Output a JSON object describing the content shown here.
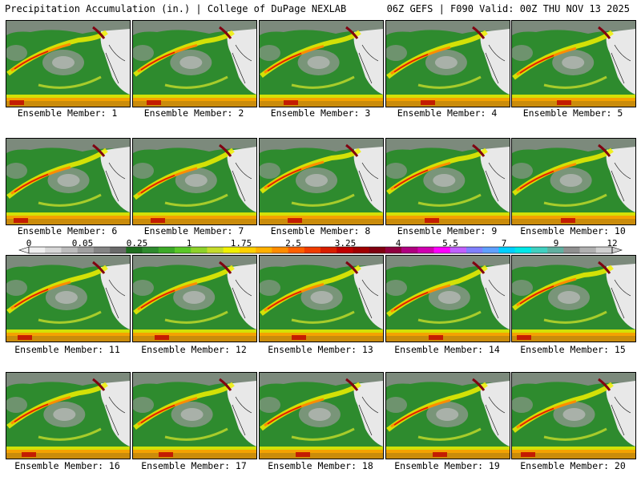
{
  "header": {
    "title": "Precipitation Accumulation (in.) | College of DuPage NEXLAB",
    "run_info": "06Z GEFS | F090 Valid: 00Z THU NOV 13 2025"
  },
  "members": [
    "Ensemble Member: 1",
    "Ensemble Member: 2",
    "Ensemble Member: 3",
    "Ensemble Member: 4",
    "Ensemble Member: 5",
    "Ensemble Member: 6",
    "Ensemble Member: 7",
    "Ensemble Member: 8",
    "Ensemble Member: 9",
    "Ensemble Member: 10",
    "Ensemble Member: 11",
    "Ensemble Member: 12",
    "Ensemble Member: 13",
    "Ensemble Member: 14",
    "Ensemble Member: 15",
    "Ensemble Member: 16",
    "Ensemble Member: 17",
    "Ensemble Member: 18",
    "Ensemble Member: 19",
    "Ensemble Member: 20"
  ],
  "colorbar": {
    "labels": [
      "0",
      "0.05",
      "0.25",
      "1",
      "1.75",
      "2.5",
      "3.25",
      "4",
      "5.5",
      "7",
      "9",
      "12"
    ],
    "colors": [
      "#f0f0f0",
      "#d8d8d8",
      "#bcbcbc",
      "#a0a0a0",
      "#848484",
      "#6a6a6a",
      "#1e6e1e",
      "#2e8b2e",
      "#3caa28",
      "#5ac828",
      "#8ed22a",
      "#c6dc2a",
      "#f0f000",
      "#ffd000",
      "#ffb000",
      "#ff8c00",
      "#ff6000",
      "#f03c00",
      "#d81e00",
      "#c00000",
      "#a00000",
      "#800010",
      "#900040",
      "#b00080",
      "#d000b0",
      "#ff00ff",
      "#c060ff",
      "#8080ff",
      "#60a0ff",
      "#00d0ff",
      "#00e8e8",
      "#40d0c0",
      "#60b0a0",
      "#909090",
      "#b0b0b0",
      "#d0d0d0"
    ]
  }
}
